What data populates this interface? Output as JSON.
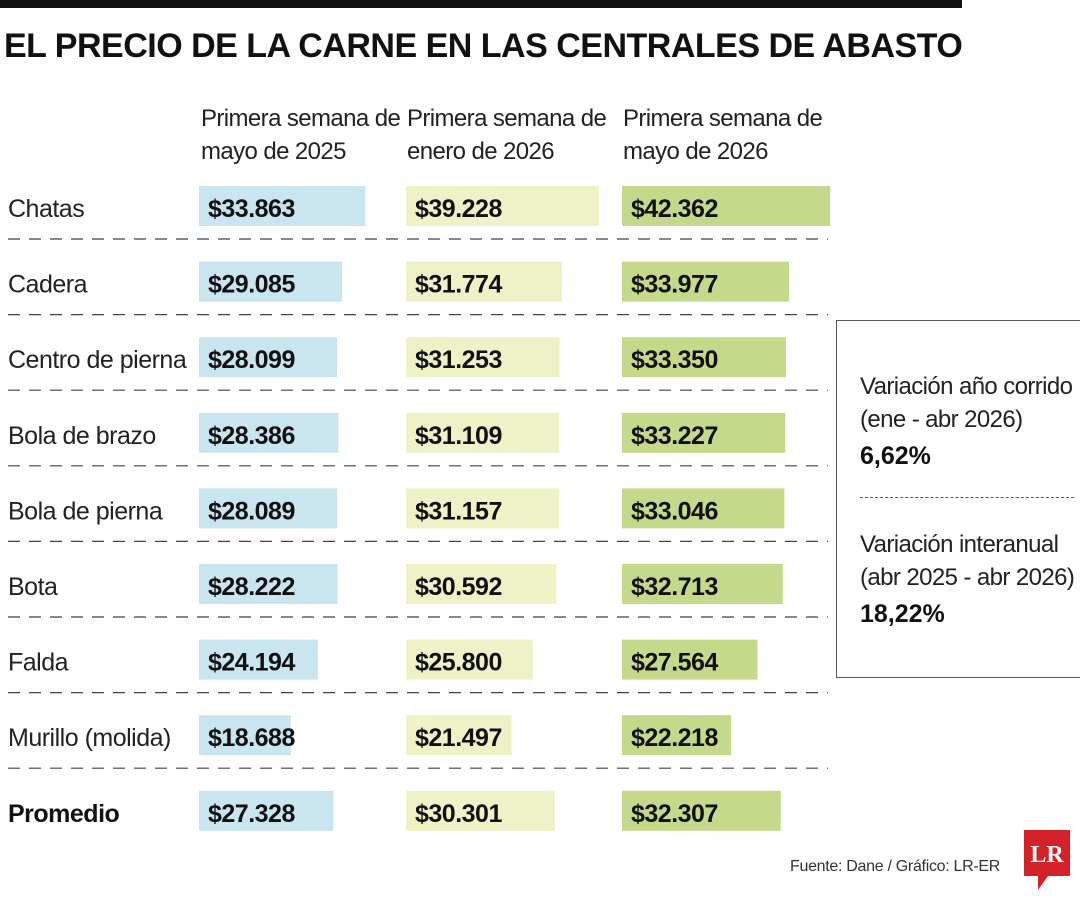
{
  "title": "EL PRECIO DE LA CARNE EN LAS CENTRALES DE ABASTO",
  "columns": [
    "Primera semana de mayo de 2025",
    "Primera semana de enero de 2026",
    "Primera semana de mayo de 2026"
  ],
  "colors": {
    "may_2025": "#c9e5f0",
    "jan_2026": "#eef2c6",
    "may_2026": "#c5d98a",
    "rule": "#111111"
  },
  "chart_data": {
    "type": "bar",
    "orientation": "horizontal",
    "title": "EL PRECIO DE LA CARNE EN LAS CENTRALES DE ABASTO",
    "categories": [
      "Chatas",
      "Cadera",
      "Centro de pierna",
      "Bola de brazo",
      "Bola de pierna",
      "Bota",
      "Falda",
      "Murillo (molida)",
      "Promedio"
    ],
    "series": [
      {
        "name": "Primera semana de mayo de 2025",
        "values": [
          33863,
          29085,
          28099,
          28386,
          28089,
          28222,
          24194,
          18688,
          27328
        ],
        "labels": [
          "$33.863",
          "$29.085",
          "$28.099",
          "$28.386",
          "$28.089",
          "$28.222",
          "$24.194",
          "$18.688",
          "$27.328"
        ]
      },
      {
        "name": "Primera semana de enero de 2026",
        "values": [
          39228,
          31774,
          31253,
          31109,
          31157,
          30592,
          25800,
          21497,
          30301
        ],
        "labels": [
          "$39.228",
          "$31.774",
          "$31.253",
          "$31.109",
          "$31.157",
          "$30.592",
          "$25.800",
          "$21.497",
          "$30.301"
        ]
      },
      {
        "name": "Primera semana de mayo de 2026",
        "values": [
          42362,
          33977,
          33350,
          33227,
          33046,
          32713,
          27564,
          22218,
          32307
        ],
        "labels": [
          "$42.362",
          "$33.977",
          "$33.350",
          "$33.227",
          "$33.046",
          "$32.713",
          "$27.564",
          "$22.218",
          "$32.307"
        ]
      }
    ],
    "bold_categories": [
      "Promedio"
    ]
  },
  "info_box": {
    "ytd_label": "Variación año corrido (ene - abr 2026)",
    "ytd_value": "6,62%",
    "yoy_label": "Variación interanual (abr 2025 - abr 2026)",
    "yoy_value": "18,22%"
  },
  "source": "Fuente: Dane / Gráfico: LR-ER",
  "logo_text": "LR"
}
